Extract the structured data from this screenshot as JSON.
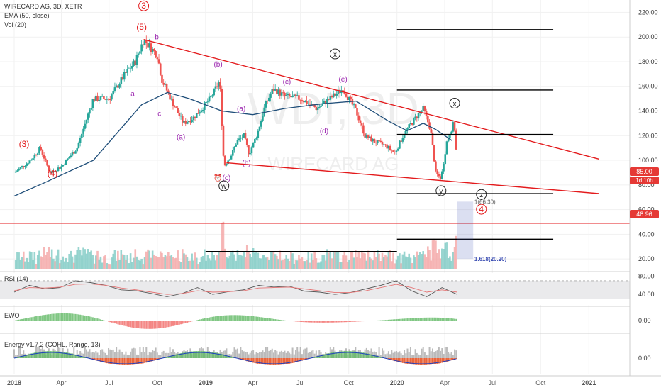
{
  "header": {
    "title": "WIRECARD AG, 3D, XETR",
    "ema": "EMA (50, close)",
    "vol": "Vol (20)"
  },
  "watermark": {
    "symbol": "WDI, 3D",
    "name": "WIRECARD AG"
  },
  "price_tags": [
    {
      "value": "85.00",
      "sub": "1d 10h",
      "color": "#e53935"
    },
    {
      "value": "48.96",
      "color": "#e53935"
    }
  ],
  "colors": {
    "up": "#26a69a",
    "down": "#ef5350",
    "trend": "#e31a1c",
    "ema": "#1f4e79",
    "wave": "#9c27b0",
    "fib": "#3f51b5",
    "vol_up": "#80cbc4",
    "vol_down": "#f4a6a6"
  },
  "chart_data": [
    {
      "type": "candlestick",
      "title": "WIRECARD AG, 3D, XETR",
      "x_ticks": [
        "2018",
        "Apr",
        "Jul",
        "Oct",
        "2019",
        "Apr",
        "Jul",
        "Oct",
        "2020",
        "Apr",
        "Jul",
        "Oct",
        "2021"
      ],
      "y_ticks": [
        20,
        40,
        60,
        80,
        100,
        120,
        140,
        160,
        180,
        200,
        220
      ],
      "ylim": [
        8,
        226
      ],
      "grid": true,
      "price_path": [
        [
          "2018-01-01",
          90
        ],
        [
          "2018-02-01",
          100
        ],
        [
          "2018-02-20",
          110
        ],
        [
          "2018-03-10",
          90
        ],
        [
          "2018-04-01",
          95
        ],
        [
          "2018-05-01",
          110
        ],
        [
          "2018-06-01",
          150
        ],
        [
          "2018-07-01",
          150
        ],
        [
          "2018-08-01",
          170
        ],
        [
          "2018-08-20",
          180
        ],
        [
          "2018-09-05",
          198
        ],
        [
          "2018-10-01",
          185
        ],
        [
          "2018-10-10",
          165
        ],
        [
          "2018-11-01",
          145
        ],
        [
          "2018-11-20",
          130
        ],
        [
          "2018-12-10",
          135
        ],
        [
          "2019-01-10",
          150
        ],
        [
          "2019-01-28",
          165
        ],
        [
          "2019-02-05",
          95
        ],
        [
          "2019-02-20",
          105
        ],
        [
          "2019-03-01",
          115
        ],
        [
          "2019-03-15",
          120
        ],
        [
          "2019-03-25",
          105
        ],
        [
          "2019-04-10",
          122
        ],
        [
          "2019-04-25",
          145
        ],
        [
          "2019-05-10",
          158
        ],
        [
          "2019-06-01",
          152
        ],
        [
          "2019-07-01",
          150
        ],
        [
          "2019-08-01",
          142
        ],
        [
          "2019-09-01",
          152
        ],
        [
          "2019-09-20",
          158
        ],
        [
          "2019-10-15",
          140
        ],
        [
          "2019-11-01",
          120
        ],
        [
          "2019-11-20",
          115
        ],
        [
          "2019-12-10",
          112
        ],
        [
          "2019-12-28",
          106
        ],
        [
          "2020-01-15",
          122
        ],
        [
          "2020-02-01",
          132
        ],
        [
          "2020-02-20",
          142
        ],
        [
          "2020-03-05",
          125
        ],
        [
          "2020-03-15",
          90
        ],
        [
          "2020-03-25",
          85
        ],
        [
          "2020-04-05",
          115
        ],
        [
          "2020-04-18",
          130
        ],
        [
          "2020-04-22",
          120
        ],
        [
          "2020-04-25",
          85
        ]
      ],
      "ema_50": [
        [
          "2018-01-01",
          71
        ],
        [
          "2018-03-01",
          82
        ],
        [
          "2018-06-01",
          100
        ],
        [
          "2018-09-01",
          145
        ],
        [
          "2018-10-20",
          155
        ],
        [
          "2018-12-01",
          150
        ],
        [
          "2019-02-01",
          140
        ],
        [
          "2019-04-01",
          137
        ],
        [
          "2019-06-01",
          142
        ],
        [
          "2019-08-15",
          146
        ],
        [
          "2019-10-15",
          148
        ],
        [
          "2019-12-15",
          132
        ],
        [
          "2020-01-20",
          124
        ],
        [
          "2020-02-20",
          130
        ],
        [
          "2020-03-15",
          125
        ],
        [
          "2020-04-15",
          116
        ]
      ],
      "lines": [
        {
          "name": "trend_upper",
          "from": [
            "2018-09-05",
            198
          ],
          "to": [
            "2021-01-20",
            101
          ]
        },
        {
          "name": "trend_lower",
          "from": [
            "2019-02-10",
            98
          ],
          "to": [
            "2021-01-20",
            73
          ]
        },
        {
          "name": "h1",
          "from": [
            "2020-01-01",
            206
          ],
          "to": [
            "2020-10-25",
            206
          ]
        },
        {
          "name": "h2",
          "from": [
            "2020-01-01",
            157
          ],
          "to": [
            "2020-10-25",
            157
          ]
        },
        {
          "name": "h3",
          "from": [
            "2020-01-01",
            121
          ],
          "to": [
            "2020-10-25",
            121
          ]
        },
        {
          "name": "h4",
          "from": [
            "2020-01-01",
            73
          ],
          "to": [
            "2020-10-25",
            73
          ]
        },
        {
          "name": "h5",
          "from": [
            "2020-01-01",
            36
          ],
          "to": [
            "2020-10-25",
            36
          ]
        },
        {
          "name": "h6",
          "from": [
            "2019-01-01",
            26
          ],
          "to": [
            "2020-01-01",
            26
          ]
        },
        {
          "name": "support",
          "from": [
            "2017-12-05",
            48.96
          ],
          "to": [
            "2021-03-20",
            48.96
          ]
        }
      ],
      "fib_box": {
        "from": [
          "2020-04-25",
          66.3
        ],
        "to": [
          "2020-05-25",
          20.2
        ],
        "levels": [
          "1(66.30)",
          "1.618(20.20)"
        ]
      },
      "annotations": [
        {
          "text": "3",
          "at": [
            "2018-09-05",
            223
          ],
          "circle": true
        },
        {
          "text": "(5)",
          "at": [
            "2018-09-01",
            206
          ]
        },
        {
          "text": "b",
          "at": [
            "2018-09-30",
            198
          ]
        },
        {
          "text": "a",
          "at": [
            "2018-08-15",
            152
          ]
        },
        {
          "text": "c",
          "at": [
            "2018-10-05",
            136
          ]
        },
        {
          "text": "(3)",
          "at": [
            "2018-01-20",
            111
          ]
        },
        {
          "text": "(4)",
          "at": [
            "2018-03-15",
            87
          ]
        },
        {
          "text": "(a)",
          "at": [
            "2018-11-15",
            117
          ]
        },
        {
          "text": "(b)",
          "at": [
            "2019-01-25",
            176
          ]
        },
        {
          "text": "(a)",
          "at": [
            "2019-03-10",
            140
          ]
        },
        {
          "text": "(b)",
          "at": [
            "2019-03-20",
            96
          ]
        },
        {
          "text": "(c)",
          "at": [
            "2019-02-10",
            84
          ]
        },
        {
          "text": "(c)",
          "at": [
            "2019-06-05",
            162
          ]
        },
        {
          "text": "(d)",
          "at": [
            "2019-08-15",
            122
          ]
        },
        {
          "text": "(e)",
          "at": [
            "2019-09-20",
            164
          ]
        },
        {
          "text": "w",
          "at": [
            "2019-02-05",
            77
          ],
          "circle": true
        },
        {
          "text": "x",
          "at": [
            "2019-09-05",
            184
          ],
          "circle": true
        },
        {
          "text": "x",
          "at": [
            "2020-04-20",
            144
          ],
          "circle": true
        },
        {
          "text": "y",
          "at": [
            "2020-03-25",
            73
          ],
          "circle": true
        },
        {
          "text": "z",
          "at": [
            "2020-06-10",
            70
          ],
          "circle": true
        },
        {
          "text": "4",
          "at": [
            "2020-06-10",
            58
          ],
          "circle": true
        }
      ],
      "volume": {
        "title": "Vol (20)",
        "bars_summary": "peaks near 2019-02 and 2019-10, spike 2020-04"
      }
    },
    {
      "type": "line",
      "title": "RSI (14)",
      "y_ticks": [
        40,
        80
      ],
      "ylim": [
        17,
        87
      ],
      "bands": [
        30,
        70
      ],
      "series": [
        {
          "values": [
            45,
            60,
            52,
            55,
            70,
            66,
            60,
            50,
            48,
            42,
            35,
            42,
            55,
            40,
            46,
            50,
            60,
            56,
            58,
            47,
            45,
            40,
            44,
            52,
            60,
            70,
            48,
            35,
            55,
            40
          ]
        },
        {
          "values": [
            48,
            55,
            54,
            56,
            62,
            63,
            60,
            54,
            50,
            45,
            40,
            42,
            48,
            45,
            46,
            48,
            54,
            55,
            56,
            52,
            48,
            44,
            44,
            48,
            55,
            62,
            55,
            45,
            50,
            45
          ]
        }
      ]
    },
    {
      "type": "bar",
      "title": "EWO",
      "y_ticks": [
        "0.00"
      ],
      "summary": "positive mid 2018, negative late 2018, mixed 2019, negative late 2019, positive early 2020, negative Apr 2020"
    },
    {
      "type": "bar",
      "title": "Energy v1.7.2 (COHL, Range, 13)",
      "y_ticks": [
        "0.00"
      ]
    }
  ]
}
